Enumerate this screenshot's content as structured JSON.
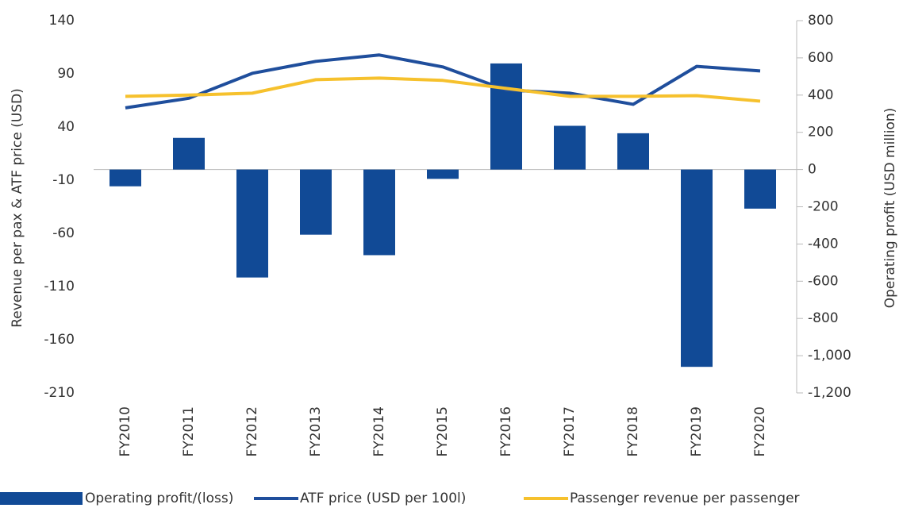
{
  "chart_data": {
    "type": "bar",
    "categories": [
      "FY2010",
      "FY2011",
      "FY2012",
      "FY2013",
      "FY2014",
      "FY2015",
      "FY2016",
      "FY2017",
      "FY2018",
      "FY2019",
      "FY2020"
    ],
    "series": [
      {
        "name": "Operating profit/(loss)",
        "type": "bar",
        "axis": "y2",
        "color": "#114a96",
        "values": [
          -90,
          170,
          -580,
          -350,
          -460,
          -50,
          570,
          235,
          195,
          -1060,
          -210
        ]
      },
      {
        "name": "ATF price (USD per 100l)",
        "type": "line",
        "axis": "y",
        "color": "#1f4e9c",
        "values": [
          58,
          67,
          90.5,
          101.7,
          107.7,
          96.5,
          74.8,
          71.8,
          61.3,
          97,
          92.7
        ]
      },
      {
        "name": "Passenger revenue per passenger",
        "type": "line",
        "axis": "y",
        "color": "#f6c12d",
        "values": [
          68.8,
          70,
          71.8,
          84.5,
          86,
          83.8,
          76.3,
          68.8,
          68.8,
          69.5,
          64.3
        ]
      }
    ],
    "ylabel": "Revenue per pax & ATF price (USD)",
    "y2label": "Operating profit (USD million)",
    "ylim": [
      -210,
      140
    ],
    "yticks": [
      -210,
      -160,
      -110,
      -60,
      -10,
      40,
      90,
      140
    ],
    "y2lim": [
      -1200,
      800
    ],
    "y2ticks": [
      {
        "value": -1200,
        "label": "-1,200"
      },
      {
        "value": -1000,
        "label": "-1,000"
      },
      -800,
      -600,
      -400,
      -200,
      0,
      200,
      400,
      600,
      800
    ],
    "legend": "bottom"
  }
}
